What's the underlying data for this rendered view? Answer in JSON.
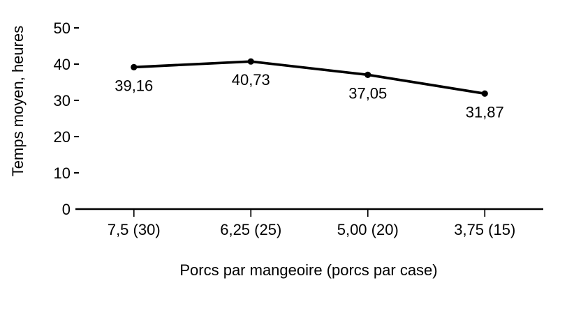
{
  "chart_data": {
    "type": "line",
    "title": "",
    "categories": [
      "7,5 (30)",
      "6,25 (25)",
      "5,00 (20)",
      "3,75 (15)"
    ],
    "values": [
      39.16,
      40.73,
      37.05,
      31.87
    ],
    "point_labels": [
      "39,16",
      "40,73",
      "37,05",
      "31,87"
    ],
    "xlabel": "Porcs par mangeoire (porcs par case)",
    "ylabel": "Temps moyen, heures",
    "ylim": [
      0,
      50
    ],
    "yticks": [
      0,
      10,
      20,
      30,
      40,
      50
    ],
    "ytick_labels": [
      "0",
      "10",
      "20",
      "30",
      "40",
      "50"
    ],
    "grid": false,
    "legend": "none",
    "line_color": "#000000",
    "marker_color": "#000000",
    "marker": "circle",
    "background": "#ffffff"
  }
}
